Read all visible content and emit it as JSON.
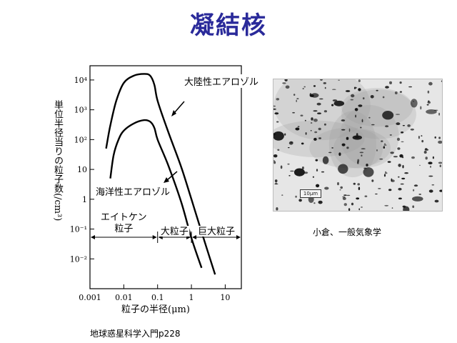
{
  "slide": {
    "title": "凝結核",
    "photo_caption": "小倉、一般気象学",
    "source": "地球惑星科学入門p228",
    "photo_scale": "10μm"
  },
  "chart_data": {
    "type": "line",
    "xlabel": "粒子の半径(μm)",
    "ylabel": "単位半径当りの粒子数(/cm³)",
    "x_scale": "log",
    "y_scale": "log",
    "xlim": [
      0.001,
      30
    ],
    "ylim": [
      0.001,
      30000
    ],
    "x_ticks": [
      "0.001",
      "0.01",
      "0.1",
      "1",
      "10"
    ],
    "y_ticks": [
      "10⁴",
      "10³",
      "10²",
      "10",
      "1",
      "10⁻¹",
      "10⁻²"
    ],
    "series": [
      {
        "name": "大陸性エアロゾル",
        "x": [
          0.003,
          0.004,
          0.006,
          0.01,
          0.02,
          0.04,
          0.06,
          0.08,
          0.1,
          0.2,
          0.5,
          1,
          2,
          5,
          10
        ],
        "y": [
          50,
          300,
          2000,
          8000,
          14000,
          16000,
          14000,
          7000,
          2000,
          200,
          12,
          1,
          0.08,
          0.003,
          0.0003
        ]
      },
      {
        "name": "海洋性エアロゾル",
        "x": [
          0.004,
          0.005,
          0.007,
          0.01,
          0.02,
          0.04,
          0.06,
          0.08,
          0.1,
          0.2,
          0.5,
          1,
          2,
          4
        ],
        "y": [
          5,
          30,
          100,
          200,
          350,
          450,
          400,
          250,
          100,
          15,
          0.8,
          0.05,
          0.005,
          0.0003
        ]
      }
    ],
    "ranges": [
      {
        "label_lines": [
          "エイトケン",
          "粒子"
        ],
        "from": 0.001,
        "to": 0.1
      },
      {
        "label_lines": [
          "大粒子"
        ],
        "from": 0.1,
        "to": 1
      },
      {
        "label_lines": [
          "巨大粒子"
        ],
        "from": 1,
        "to": 30
      }
    ]
  }
}
